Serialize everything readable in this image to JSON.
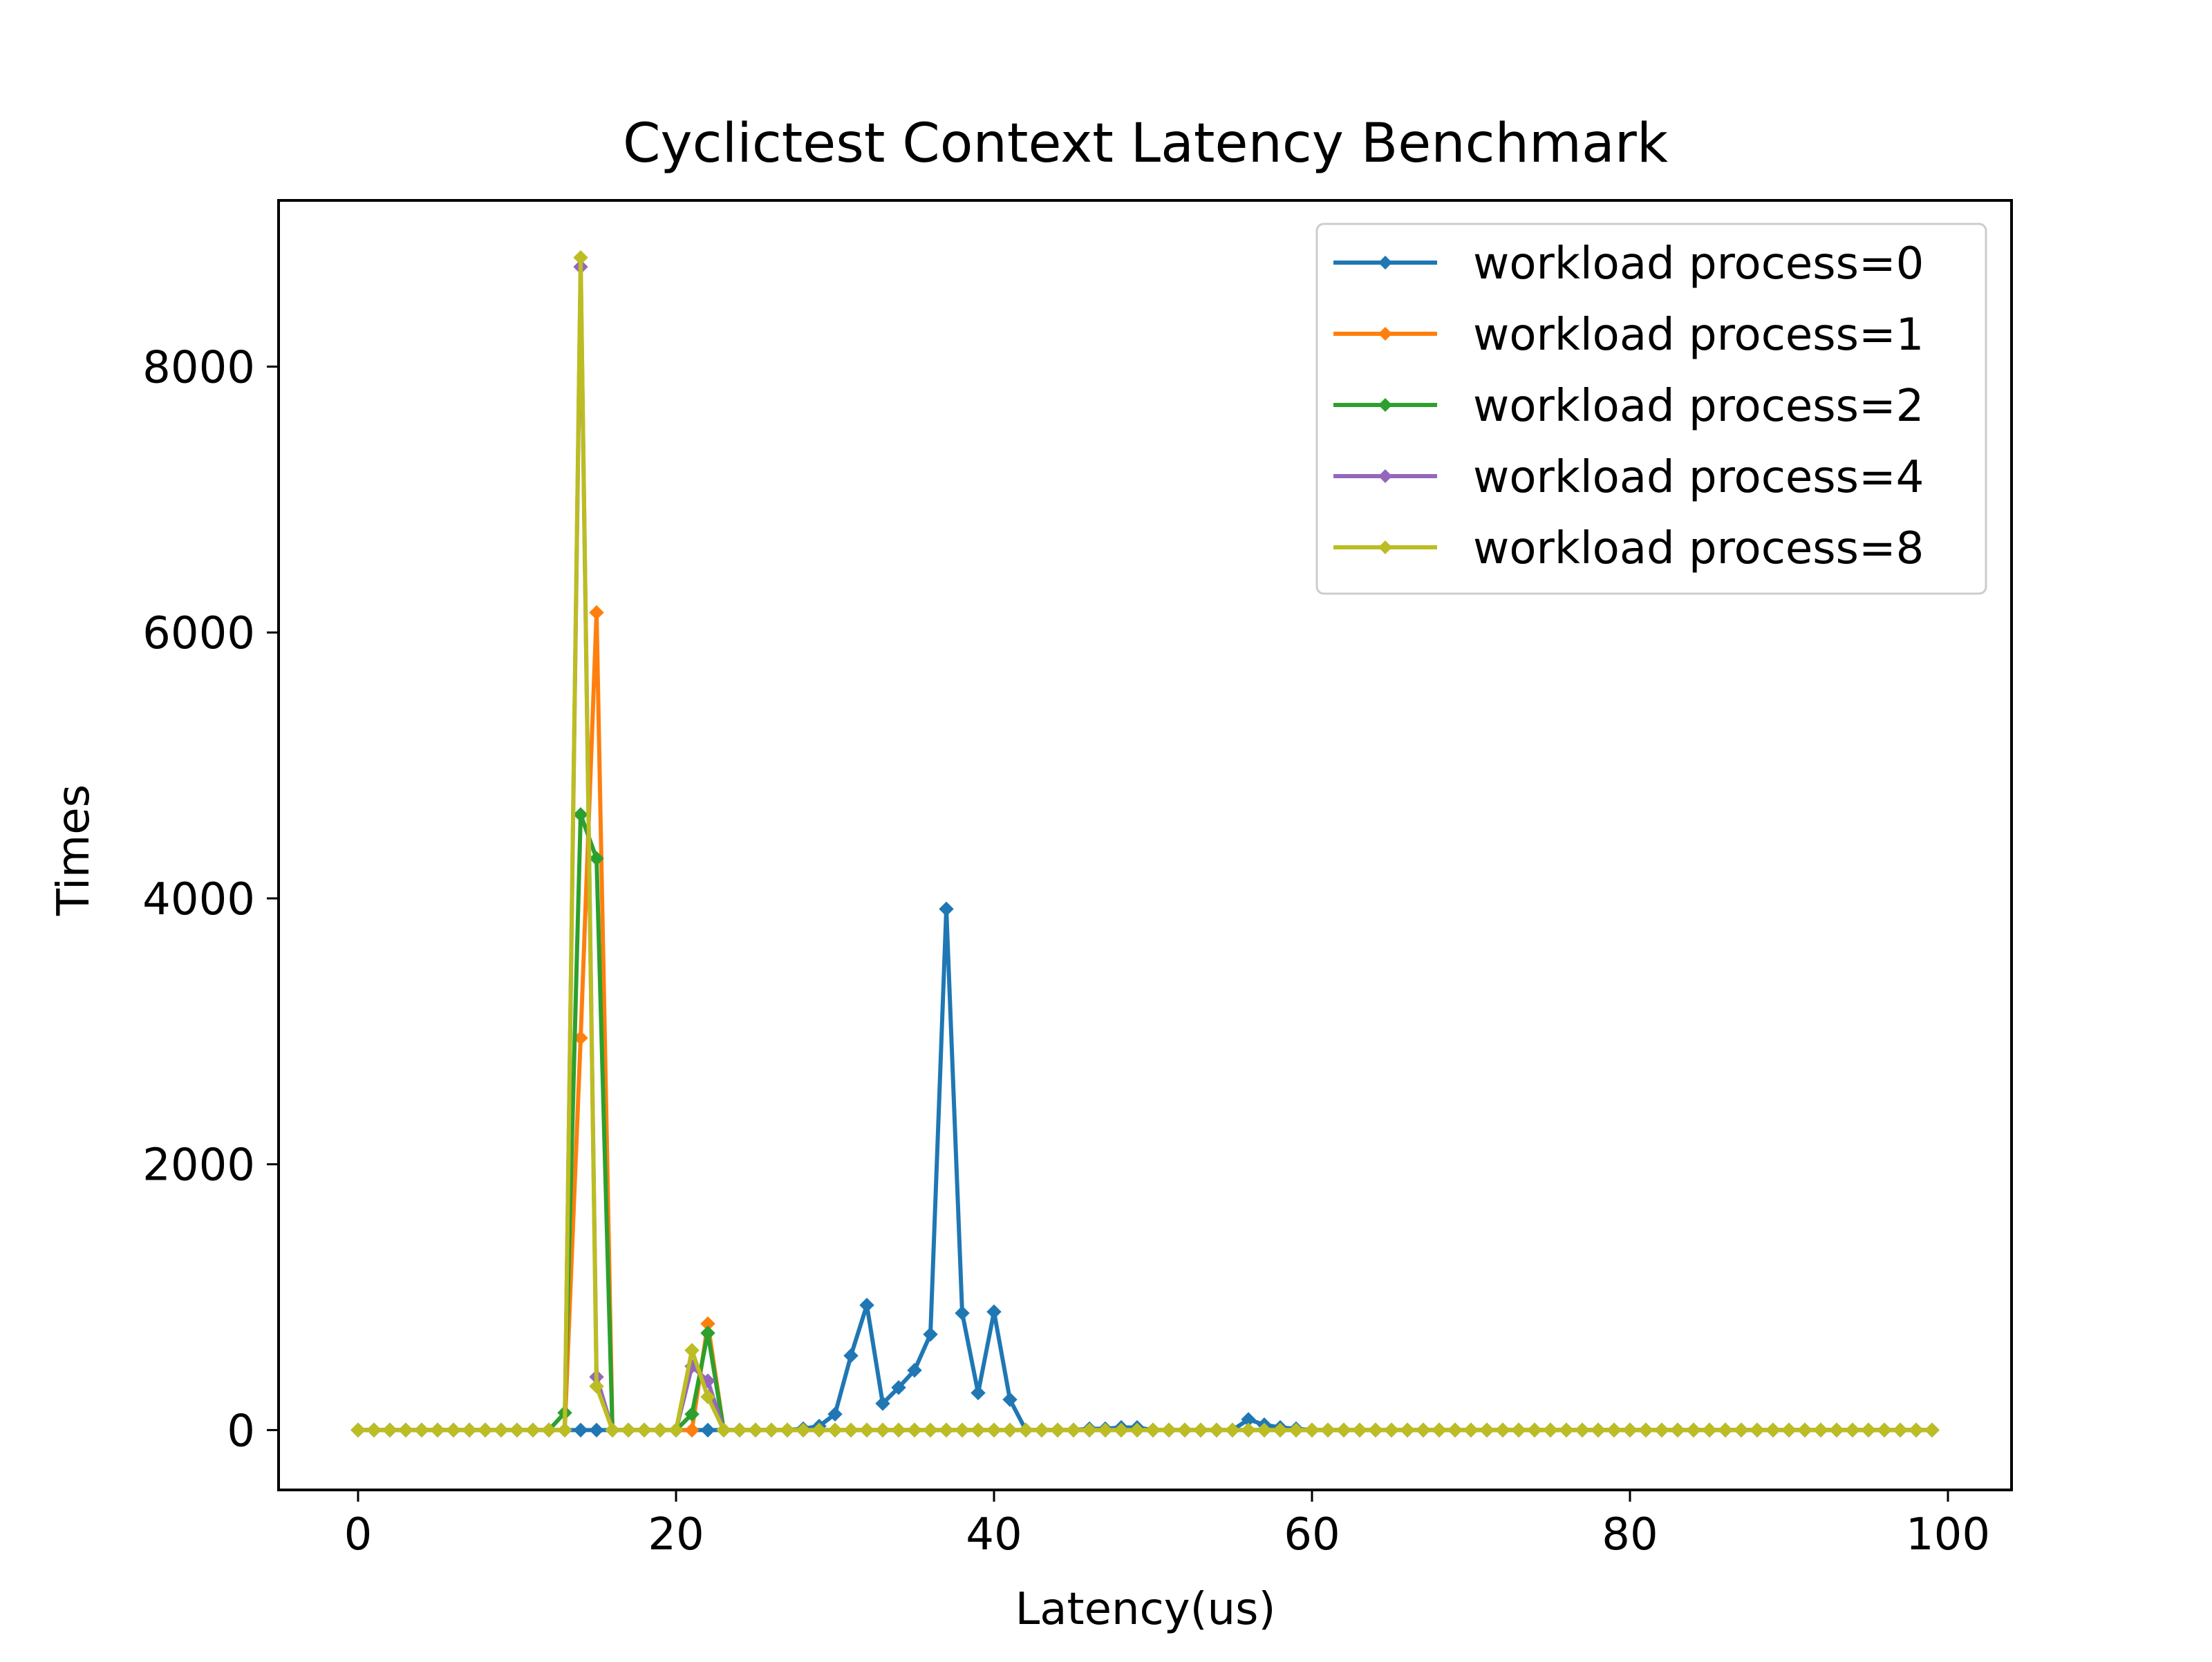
{
  "chart_data": {
    "type": "line",
    "title": "Cyclictest Context Latency Benchmark",
    "xlabel": "Latency(us)",
    "ylabel": "Times",
    "xlim": [
      -5,
      104
    ],
    "ylim": [
      -450,
      9250
    ],
    "xticks": [
      0,
      20,
      40,
      60,
      80,
      100
    ],
    "yticks": [
      0,
      2000,
      4000,
      6000,
      8000
    ],
    "grid": false,
    "legend_position": "top-right",
    "x": [
      0,
      1,
      2,
      3,
      4,
      5,
      6,
      7,
      8,
      9,
      10,
      11,
      12,
      13,
      14,
      15,
      16,
      17,
      18,
      19,
      20,
      21,
      22,
      23,
      24,
      25,
      26,
      27,
      28,
      29,
      30,
      31,
      32,
      33,
      34,
      35,
      36,
      37,
      38,
      39,
      40,
      41,
      42,
      43,
      44,
      45,
      46,
      47,
      48,
      49,
      50,
      51,
      52,
      53,
      54,
      55,
      56,
      57,
      58,
      59,
      60,
      61,
      62,
      63,
      64,
      65,
      66,
      67,
      68,
      69,
      70,
      71,
      72,
      73,
      74,
      75,
      76,
      77,
      78,
      79,
      80,
      81,
      82,
      83,
      84,
      85,
      86,
      87,
      88,
      89,
      90,
      91,
      92,
      93,
      94,
      95,
      96,
      97,
      98,
      99
    ],
    "series": [
      {
        "name": "workload process=0",
        "color": "#1f77b4",
        "values": [
          0,
          0,
          0,
          0,
          0,
          0,
          0,
          0,
          0,
          0,
          0,
          0,
          0,
          0,
          0,
          0,
          0,
          0,
          0,
          0,
          0,
          0,
          0,
          0,
          0,
          0,
          0,
          0,
          10,
          30,
          120,
          560,
          940,
          200,
          320,
          450,
          720,
          3920,
          880,
          280,
          890,
          230,
          0,
          0,
          0,
          0,
          10,
          10,
          20,
          20,
          0,
          0,
          0,
          0,
          0,
          0,
          80,
          40,
          20,
          10,
          0,
          0,
          0,
          0,
          0,
          0,
          0,
          0,
          0,
          0,
          0,
          0,
          0,
          0,
          0,
          0,
          0,
          0,
          0,
          0,
          0,
          0,
          0,
          0,
          0,
          0,
          0,
          0,
          0,
          0,
          0,
          0,
          0,
          0,
          0,
          0,
          0,
          0,
          0,
          0
        ]
      },
      {
        "name": "workload process=1",
        "color": "#ff7f0e",
        "values": [
          0,
          0,
          0,
          0,
          0,
          0,
          0,
          0,
          0,
          0,
          0,
          0,
          0,
          0,
          2950,
          6150,
          0,
          0,
          0,
          0,
          0,
          0,
          800,
          0,
          0,
          0,
          0,
          0,
          0,
          0,
          0,
          0,
          0,
          0,
          0,
          0,
          0,
          0,
          0,
          0,
          0,
          0,
          0,
          0,
          0,
          0,
          0,
          0,
          0,
          0,
          0,
          0,
          0,
          0,
          0,
          0,
          0,
          0,
          0,
          0,
          0,
          0,
          0,
          0,
          0,
          0,
          0,
          0,
          0,
          0,
          0,
          0,
          0,
          0,
          0,
          0,
          0,
          0,
          0,
          0,
          0,
          0,
          0,
          0,
          0,
          0,
          0,
          0,
          0,
          0,
          0,
          0,
          0,
          0,
          0,
          0,
          0,
          0,
          0,
          0
        ]
      },
      {
        "name": "workload process=2",
        "color": "#2ca02c",
        "values": [
          0,
          0,
          0,
          0,
          0,
          0,
          0,
          0,
          0,
          0,
          0,
          0,
          0,
          130,
          4630,
          4300,
          0,
          0,
          0,
          0,
          0,
          120,
          730,
          0,
          0,
          0,
          0,
          0,
          0,
          0,
          0,
          0,
          0,
          0,
          0,
          0,
          0,
          0,
          0,
          0,
          0,
          0,
          0,
          0,
          0,
          0,
          0,
          0,
          0,
          0,
          0,
          0,
          0,
          0,
          0,
          0,
          0,
          0,
          0,
          0,
          0,
          0,
          0,
          0,
          0,
          0,
          0,
          0,
          0,
          0,
          0,
          0,
          0,
          0,
          0,
          0,
          0,
          0,
          0,
          0,
          0,
          0,
          0,
          0,
          0,
          0,
          0,
          0,
          0,
          0,
          0,
          0,
          0,
          0,
          0,
          0,
          0,
          0,
          0,
          0
        ]
      },
      {
        "name": "workload process=4",
        "color": "#9467bd",
        "values": [
          0,
          0,
          0,
          0,
          0,
          0,
          0,
          0,
          0,
          0,
          0,
          0,
          0,
          0,
          8750,
          400,
          0,
          0,
          0,
          0,
          0,
          480,
          370,
          0,
          0,
          0,
          0,
          0,
          0,
          0,
          0,
          0,
          0,
          0,
          0,
          0,
          0,
          0,
          0,
          0,
          0,
          0,
          0,
          0,
          0,
          0,
          0,
          0,
          0,
          0,
          0,
          0,
          0,
          0,
          0,
          0,
          0,
          0,
          0,
          0,
          0,
          0,
          0,
          0,
          0,
          0,
          0,
          0,
          0,
          0,
          0,
          0,
          0,
          0,
          0,
          0,
          0,
          0,
          0,
          0,
          0,
          0,
          0,
          0,
          0,
          0,
          0,
          0,
          0,
          0,
          0,
          0,
          0,
          0,
          0,
          0,
          0,
          0,
          0,
          0
        ]
      },
      {
        "name": "workload process=8",
        "color": "#bcbd22",
        "values": [
          0,
          0,
          0,
          0,
          0,
          0,
          0,
          0,
          0,
          0,
          0,
          0,
          0,
          0,
          8820,
          330,
          0,
          0,
          0,
          0,
          0,
          600,
          250,
          0,
          0,
          0,
          0,
          0,
          0,
          0,
          0,
          0,
          0,
          0,
          0,
          0,
          0,
          0,
          0,
          0,
          0,
          0,
          0,
          0,
          0,
          0,
          0,
          0,
          0,
          0,
          0,
          0,
          0,
          0,
          0,
          0,
          0,
          0,
          0,
          0,
          0,
          0,
          0,
          0,
          0,
          0,
          0,
          0,
          0,
          0,
          0,
          0,
          0,
          0,
          0,
          0,
          0,
          0,
          0,
          0,
          0,
          0,
          0,
          0,
          0,
          0,
          0,
          0,
          0,
          0,
          0,
          0,
          0,
          0,
          0,
          0,
          0,
          0,
          0,
          0
        ]
      }
    ]
  }
}
